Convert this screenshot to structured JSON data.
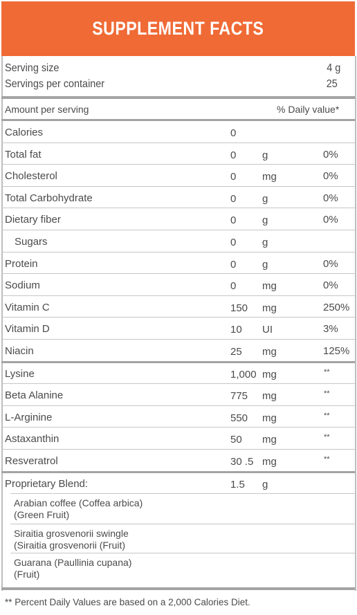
{
  "title": "SUPPLEMENT FACTS",
  "serving": {
    "size_label": "Serving size",
    "size_value": "4 g",
    "per_container_label": "Servings per container",
    "per_container_value": "25"
  },
  "header_row": {
    "amount_label": "Amount per serving",
    "dv_label": "% Daily value*"
  },
  "nutrients": [
    {
      "name": "Calories",
      "amount": "0",
      "unit": "",
      "dv": ""
    },
    {
      "name": "Total fat",
      "amount": "0",
      "unit": "g",
      "dv": "0%"
    },
    {
      "name": "Cholesterol",
      "amount": "0",
      "unit": "mg",
      "dv": "0%"
    },
    {
      "name": "Total Carbohydrate",
      "amount": "0",
      "unit": "g",
      "dv": "0%"
    },
    {
      "name": "Dietary fiber",
      "amount": "0",
      "unit": "g",
      "dv": "0%"
    },
    {
      "name": "Sugars",
      "amount": "0",
      "unit": "g",
      "dv": ""
    },
    {
      "name": "Protein",
      "amount": "0",
      "unit": "g",
      "dv": "0%"
    },
    {
      "name": "Sodium",
      "amount": "0",
      "unit": "mg",
      "dv": "0%"
    },
    {
      "name": "Vitamin C",
      "amount": "150",
      "unit": "mg",
      "dv": "250%"
    },
    {
      "name": "Vitamin D",
      "amount": "10",
      "unit": "UI",
      "dv": "3%"
    },
    {
      "name": "Niacin",
      "amount": "25",
      "unit": "mg",
      "dv": "125%"
    }
  ],
  "other": [
    {
      "name": "Lysine",
      "amount": "1,000",
      "unit": "mg",
      "dv": "**"
    },
    {
      "name": "Beta Alanine",
      "amount": "775",
      "unit": "mg",
      "dv": "**"
    },
    {
      "name": "L-Arginine",
      "amount": "550",
      "unit": "mg",
      "dv": "**"
    },
    {
      "name": "Astaxanthin",
      "amount": "50",
      "unit": "mg",
      "dv": "**"
    },
    {
      "name": "Resveratrol",
      "amount": "30 .5",
      "unit": "mg",
      "dv": "**"
    }
  ],
  "blend": {
    "name": "Proprietary Blend:",
    "amount": "1.5",
    "unit": "g",
    "items": [
      {
        "line1": "Arabian coffee (Coffea arbica)",
        "line2": "(Green Fruit)"
      },
      {
        "line1": "Siraitia grosvenorii swingle",
        "line2": "(Siraitia grosvenorii (Fruit)"
      },
      {
        "line1": "Guarana (Paullinia cupana)",
        "line2": "(Fruit)"
      }
    ]
  },
  "footnote": "** Percent Daily Values are based on a 2,000 Calories Diet."
}
